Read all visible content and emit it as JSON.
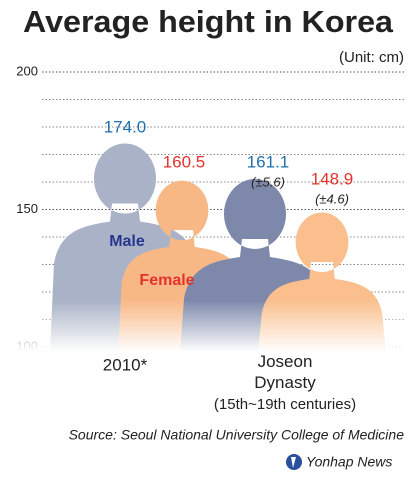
{
  "chart_data": {
    "type": "silhouette",
    "title": "Average height in Korea",
    "unit": "(Unit: cm)",
    "categories": [
      "2010*",
      "Joseon Dynasty"
    ],
    "category_note": [
      null,
      "(15th~19th centuries)"
    ],
    "series": [
      {
        "name": "Male",
        "colors": [
          "#a9b2c6",
          "#7d88aa"
        ],
        "name_color": "#27368f",
        "label_color": "#1f6fae",
        "values": [
          174.0,
          161.1
        ],
        "value_labels": [
          "174.0",
          "161.1"
        ],
        "errors": [
          null,
          5.6
        ],
        "error_labels": [
          null,
          "(±5.6)"
        ]
      },
      {
        "name": "Female",
        "colors": [
          "#f8b886",
          "#fabf8d"
        ],
        "name_color": "#e2332d",
        "label_color": "#e2332d",
        "values": [
          160.5,
          148.9
        ],
        "value_labels": [
          "160.5",
          "148.9"
        ],
        "errors": [
          null,
          4.6
        ],
        "error_labels": [
          null,
          "(±4.6)"
        ]
      }
    ],
    "ylim": [
      100,
      200
    ],
    "yticks": [
      100,
      150,
      200
    ],
    "minor_yticks": [
      110,
      120,
      130,
      140,
      160,
      170,
      180,
      190
    ],
    "grid": true,
    "source": "Source: Seoul National University College of Medicine",
    "credit": "Yonhap News"
  }
}
